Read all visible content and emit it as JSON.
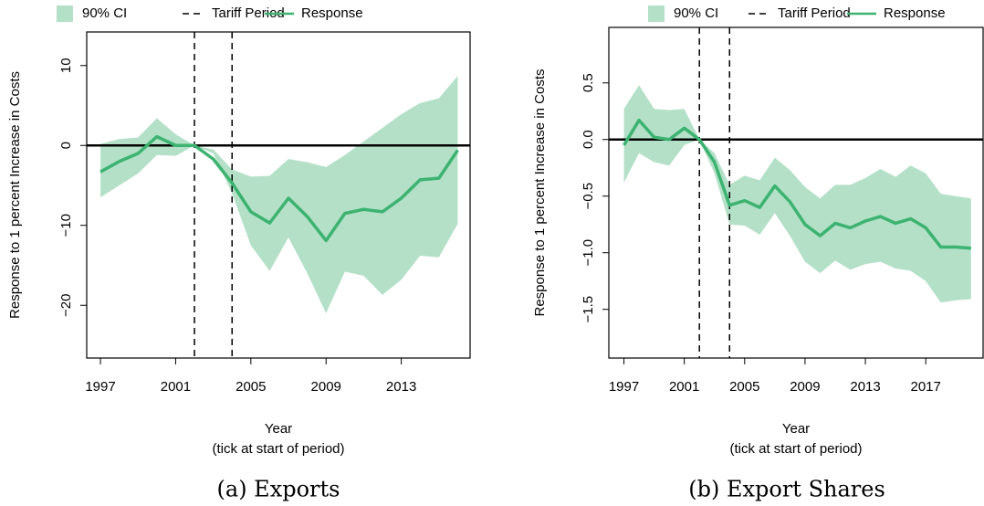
{
  "chart_data": [
    {
      "type": "line",
      "caption": "(a) Exports",
      "ylabel": "Response to 1 percent Increase in Costs",
      "xlabel": "Year",
      "xlabel_note": "(tick at start of period)",
      "x": [
        1997,
        1998,
        1999,
        2000,
        2001,
        2002,
        2003,
        2004,
        2005,
        2006,
        2007,
        2008,
        2009,
        2010,
        2011,
        2012,
        2013,
        2014,
        2015,
        2016
      ],
      "series": [
        {
          "name": "90% CI",
          "kind": "band",
          "color": "#b3e0c7",
          "lower": [
            -6.5,
            -5.0,
            -3.5,
            -1.2,
            -1.3,
            0,
            -1.0,
            -6.0,
            -12.5,
            -15.7,
            -11.5,
            -16.0,
            -21.0,
            -15.8,
            -16.3,
            -18.7,
            -16.8,
            -13.8,
            -14.0,
            -9.8
          ],
          "upper": [
            0.2,
            0.8,
            1.0,
            3.4,
            1.4,
            0,
            -0.5,
            -3.0,
            -3.9,
            -3.8,
            -1.7,
            -2.1,
            -2.7,
            -1.2,
            0.5,
            2.2,
            3.9,
            5.3,
            5.9,
            8.7
          ]
        },
        {
          "name": "Response",
          "color": "#3cb371",
          "values": [
            -3.3,
            -2.0,
            -1.0,
            1.1,
            0.0,
            0,
            -1.7,
            -4.7,
            -8.3,
            -9.7,
            -6.6,
            -8.9,
            -11.9,
            -8.5,
            -8.0,
            -8.3,
            -6.6,
            -4.3,
            -4.1,
            -0.6
          ]
        }
      ],
      "vlines": {
        "name": "Tariff Period",
        "x": [
          2002,
          2004
        ]
      },
      "reference_line": 0,
      "xlim": [
        1996.27,
        2016.66
      ],
      "xticks": [
        1997,
        2001,
        2005,
        2009,
        2013
      ],
      "ylim": [
        -26.6,
        14.2
      ],
      "yticks": [
        {
          "value": -20,
          "label": "−20"
        },
        {
          "value": -10,
          "label": "−10"
        },
        0,
        10
      ]
    },
    {
      "type": "line",
      "caption": "(b) Export Shares",
      "ylabel": "Response to 1 percent Increase in Costs",
      "xlabel": "Year",
      "xlabel_note": "(tick at start of period)",
      "x": [
        1997,
        1998,
        1999,
        2000,
        2001,
        2002,
        2003,
        2004,
        2005,
        2006,
        2007,
        2008,
        2009,
        2010,
        2011,
        2012,
        2013,
        2014,
        2015,
        2016,
        2017,
        2018,
        2019,
        2020
      ],
      "series": [
        {
          "name": "90% CI",
          "kind": "band",
          "color": "#b3e0c7",
          "lower": [
            -0.38,
            -0.12,
            -0.2,
            -0.23,
            -0.05,
            0,
            -0.3,
            -0.75,
            -0.76,
            -0.84,
            -0.65,
            -0.85,
            -1.08,
            -1.18,
            -1.07,
            -1.15,
            -1.1,
            -1.08,
            -1.14,
            -1.16,
            -1.25,
            -1.44,
            -1.42,
            -1.41
          ],
          "upper": [
            0.27,
            0.48,
            0.27,
            0.26,
            0.27,
            0,
            -0.12,
            -0.4,
            -0.32,
            -0.36,
            -0.16,
            -0.27,
            -0.42,
            -0.52,
            -0.4,
            -0.4,
            -0.34,
            -0.26,
            -0.33,
            -0.23,
            -0.3,
            -0.48,
            -0.5,
            -0.52
          ]
        },
        {
          "name": "Response",
          "color": "#3cb371",
          "values": [
            -0.05,
            0.17,
            0.02,
            0.0,
            0.1,
            0,
            -0.2,
            -0.58,
            -0.54,
            -0.6,
            -0.41,
            -0.55,
            -0.75,
            -0.85,
            -0.74,
            -0.78,
            -0.72,
            -0.68,
            -0.74,
            -0.7,
            -0.78,
            -0.95,
            -0.95,
            -0.96
          ]
        }
      ],
      "vlines": {
        "name": "Tariff Period",
        "x": [
          2002,
          2004
        ]
      },
      "reference_line": 0,
      "xlim": [
        1996.0,
        2020.8
      ],
      "xticks": [
        1997,
        2001,
        2005,
        2009,
        2013,
        2017
      ],
      "ylim": [
        -1.93,
        0.99
      ],
      "yticks": [
        {
          "value": -1.5,
          "label": "−1.5"
        },
        {
          "value": -1,
          "label": "−1.0"
        },
        {
          "value": -0.5,
          "label": "−0.5"
        },
        {
          "value": 0,
          "label": "0.0"
        },
        0.5
      ]
    }
  ]
}
